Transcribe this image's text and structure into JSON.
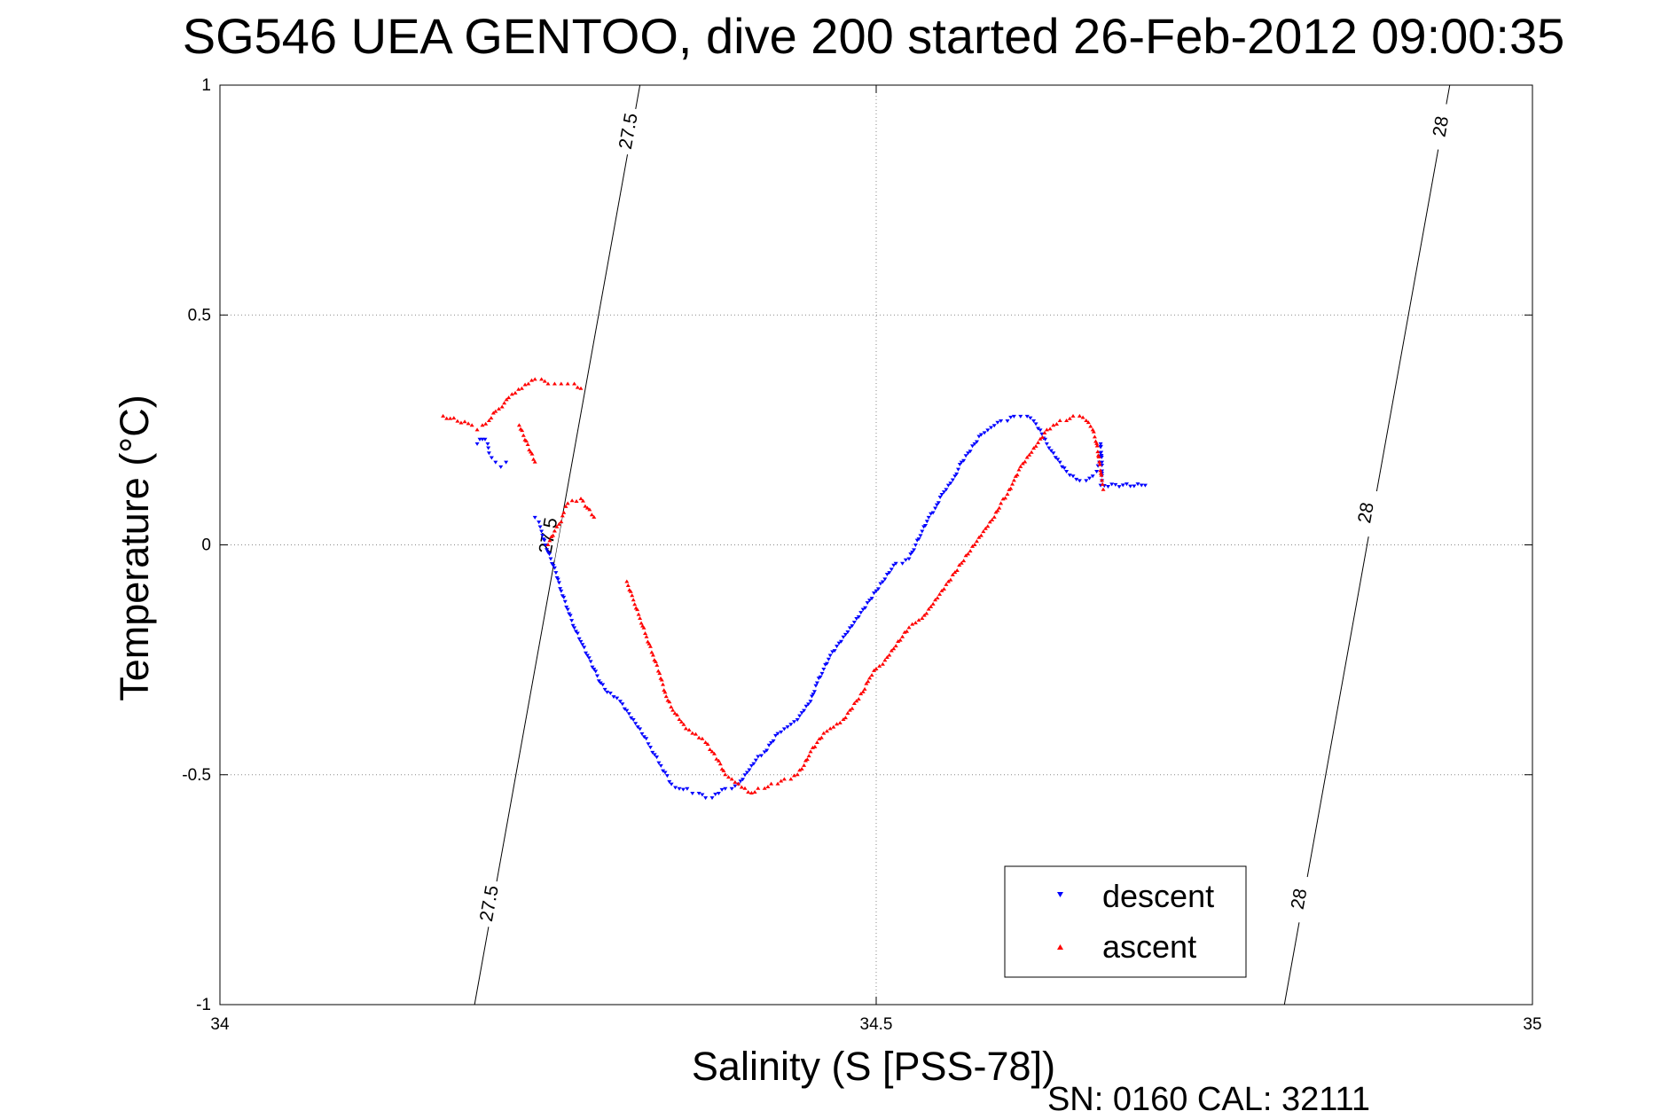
{
  "chart_data": {
    "type": "scatter",
    "title": "SG546 UEA GENTOO, dive 200 started 26-Feb-2012 09:00:35",
    "xlabel": "Salinity (S [PSS-78])",
    "ylabel": "Temperature (°C)",
    "xlim": [
      34,
      35
    ],
    "ylim": [
      -1,
      1
    ],
    "x_ticks": [
      34,
      34.5,
      35
    ],
    "x_tick_labels": [
      "34",
      "34.5",
      "35"
    ],
    "y_ticks": [
      -1,
      -0.5,
      0,
      0.5,
      1
    ],
    "y_tick_labels": [
      "-1",
      "-0.5",
      "0",
      "0.5",
      "1"
    ],
    "grid": true,
    "legend_position": "bottom-right",
    "density_contours": [
      {
        "level": "27.5",
        "points": [
          [
            34.194,
            -1.0
          ],
          [
            34.32,
            1.0
          ]
        ],
        "label_positions": [
          [
            34.205,
            -0.78
          ],
          [
            34.25,
            0.02
          ],
          [
            34.311,
            0.9
          ]
        ]
      },
      {
        "level": "28",
        "points": [
          [
            34.811,
            -1.0
          ],
          [
            34.937,
            1.0
          ]
        ],
        "label_positions": [
          [
            34.822,
            -0.77
          ],
          [
            34.873,
            0.07
          ],
          [
            34.93,
            0.91
          ]
        ]
      }
    ],
    "series": [
      {
        "name": "descent",
        "color": "#0000ff",
        "marker": "triangle-down",
        "x": [
          34.196,
          34.198,
          34.2,
          34.202,
          34.204,
          34.205,
          34.207,
          34.21,
          34.214,
          34.218,
          34.24,
          34.243,
          34.245,
          34.248,
          34.252,
          34.256,
          34.26,
          34.265,
          34.27,
          34.275,
          34.28,
          34.285,
          34.29,
          34.295,
          34.3,
          34.305,
          34.31,
          34.315,
          34.32,
          34.328,
          34.336,
          34.344,
          34.35,
          34.356,
          34.36,
          34.365,
          34.37,
          34.375,
          34.38,
          34.385,
          34.39,
          34.395,
          34.4,
          34.405,
          34.41,
          34.415,
          34.42,
          34.425,
          34.43,
          34.435,
          34.44,
          34.445,
          34.45,
          34.455,
          34.46,
          34.465,
          34.47,
          34.475,
          34.48,
          34.485,
          34.49,
          34.495,
          34.5,
          34.505,
          34.51,
          34.515,
          34.52,
          34.525,
          34.53,
          34.535,
          34.54,
          34.545,
          34.55,
          34.555,
          34.56,
          34.565,
          34.57,
          34.575,
          34.58,
          34.585,
          34.59,
          34.595,
          34.6,
          34.605,
          34.61,
          34.615,
          34.62,
          34.625,
          34.63,
          34.635,
          34.64,
          34.645,
          34.65,
          34.655,
          34.66,
          34.665,
          34.668,
          34.67,
          34.671,
          34.671,
          34.672,
          34.672,
          34.671,
          34.705
        ],
        "y": [
          0.22,
          0.23,
          0.23,
          0.23,
          0.22,
          0.2,
          0.19,
          0.18,
          0.17,
          0.18,
          0.06,
          0.05,
          0.03,
          0.0,
          -0.03,
          -0.06,
          -0.1,
          -0.14,
          -0.18,
          -0.21,
          -0.24,
          -0.27,
          -0.3,
          -0.32,
          -0.33,
          -0.34,
          -0.36,
          -0.38,
          -0.4,
          -0.44,
          -0.48,
          -0.52,
          -0.53,
          -0.53,
          -0.54,
          -0.54,
          -0.55,
          -0.55,
          -0.54,
          -0.53,
          -0.53,
          -0.52,
          -0.5,
          -0.48,
          -0.46,
          -0.45,
          -0.43,
          -0.41,
          -0.4,
          -0.39,
          -0.38,
          -0.36,
          -0.34,
          -0.3,
          -0.27,
          -0.24,
          -0.22,
          -0.2,
          -0.18,
          -0.16,
          -0.14,
          -0.12,
          -0.1,
          -0.08,
          -0.06,
          -0.04,
          -0.04,
          -0.03,
          0.0,
          0.03,
          0.06,
          0.08,
          0.11,
          0.13,
          0.15,
          0.18,
          0.2,
          0.22,
          0.24,
          0.25,
          0.26,
          0.27,
          0.27,
          0.28,
          0.28,
          0.28,
          0.27,
          0.25,
          0.22,
          0.2,
          0.18,
          0.16,
          0.15,
          0.14,
          0.14,
          0.15,
          0.16,
          0.18,
          0.2,
          0.22,
          0.18,
          0.14,
          0.13,
          0.13
        ]
      },
      {
        "name": "ascent",
        "color": "#ff0000",
        "marker": "triangle-up",
        "x": [
          34.17,
          34.192,
          34.196,
          34.2,
          34.205,
          34.21,
          34.215,
          34.22,
          34.225,
          34.23,
          34.235,
          34.24,
          34.245,
          34.25,
          34.255,
          34.26,
          34.265,
          34.27,
          34.275,
          34.228,
          34.24,
          34.25,
          34.255,
          34.26,
          34.262,
          34.265,
          34.275,
          34.285,
          34.31,
          34.315,
          34.32,
          34.325,
          34.33,
          34.335,
          34.34,
          34.345,
          34.35,
          34.355,
          34.36,
          34.365,
          34.37,
          34.375,
          34.38,
          34.385,
          34.39,
          34.395,
          34.4,
          34.405,
          34.41,
          34.415,
          34.42,
          34.425,
          34.43,
          34.435,
          34.44,
          34.445,
          34.45,
          34.455,
          34.46,
          34.465,
          34.47,
          34.475,
          34.48,
          34.485,
          34.49,
          34.495,
          34.5,
          34.505,
          34.51,
          34.515,
          34.52,
          34.525,
          34.53,
          34.535,
          34.54,
          34.545,
          34.55,
          34.555,
          34.56,
          34.565,
          34.57,
          34.575,
          34.58,
          34.585,
          34.59,
          34.595,
          34.6,
          34.605,
          34.61,
          34.615,
          34.62,
          34.625,
          34.63,
          34.635,
          34.64,
          34.645,
          34.65,
          34.655,
          34.66,
          34.665,
          34.668,
          34.67,
          34.672,
          34.673
        ],
        "y": [
          0.28,
          0.26,
          0.25,
          0.26,
          0.27,
          0.29,
          0.3,
          0.32,
          0.33,
          0.34,
          0.35,
          0.36,
          0.36,
          0.35,
          0.35,
          0.35,
          0.35,
          0.35,
          0.34,
          0.26,
          0.18,
          0.0,
          0.03,
          0.05,
          0.07,
          0.09,
          0.1,
          0.06,
          -0.08,
          -0.12,
          -0.16,
          -0.2,
          -0.24,
          -0.28,
          -0.33,
          -0.36,
          -0.38,
          -0.4,
          -0.41,
          -0.42,
          -0.43,
          -0.45,
          -0.47,
          -0.5,
          -0.51,
          -0.52,
          -0.53,
          -0.54,
          -0.53,
          -0.53,
          -0.52,
          -0.52,
          -0.51,
          -0.51,
          -0.5,
          -0.48,
          -0.45,
          -0.43,
          -0.41,
          -0.4,
          -0.39,
          -0.38,
          -0.36,
          -0.34,
          -0.32,
          -0.29,
          -0.27,
          -0.26,
          -0.24,
          -0.22,
          -0.2,
          -0.18,
          -0.17,
          -0.16,
          -0.14,
          -0.12,
          -0.1,
          -0.08,
          -0.06,
          -0.04,
          -0.02,
          0.0,
          0.02,
          0.04,
          0.06,
          0.09,
          0.11,
          0.14,
          0.17,
          0.19,
          0.21,
          0.23,
          0.25,
          0.26,
          0.27,
          0.27,
          0.28,
          0.28,
          0.27,
          0.25,
          0.22,
          0.18,
          0.14,
          0.12
        ]
      }
    ]
  },
  "footer": {
    "sn_cal": "SN: 0160  CAL: 32111"
  }
}
